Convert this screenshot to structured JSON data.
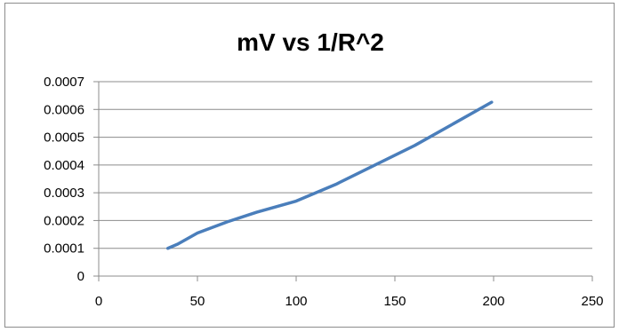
{
  "chart_data": {
    "type": "line",
    "title": "mV vs 1/R^2",
    "xlabel": "",
    "ylabel": "",
    "xlim": [
      0,
      250
    ],
    "ylim": [
      0,
      0.0007
    ],
    "x_ticks": [
      "0",
      "50",
      "100",
      "150",
      "200",
      "250"
    ],
    "y_ticks": [
      "0",
      "0.0001",
      "0.0002",
      "0.0003",
      "0.0004",
      "0.0005",
      "0.0006",
      "0.0007"
    ],
    "grid": true,
    "legend": "none",
    "series": [
      {
        "color": "#4a7ebb",
        "points": [
          {
            "x": 35,
            "y": 0.0001
          },
          {
            "x": 40,
            "y": 0.000115
          },
          {
            "x": 50,
            "y": 0.000155
          },
          {
            "x": 65,
            "y": 0.000195
          },
          {
            "x": 80,
            "y": 0.00023
          },
          {
            "x": 100,
            "y": 0.00027
          },
          {
            "x": 120,
            "y": 0.00033
          },
          {
            "x": 140,
            "y": 0.0004
          },
          {
            "x": 160,
            "y": 0.00047
          },
          {
            "x": 180,
            "y": 0.00055
          },
          {
            "x": 199,
            "y": 0.000626
          }
        ]
      }
    ]
  }
}
